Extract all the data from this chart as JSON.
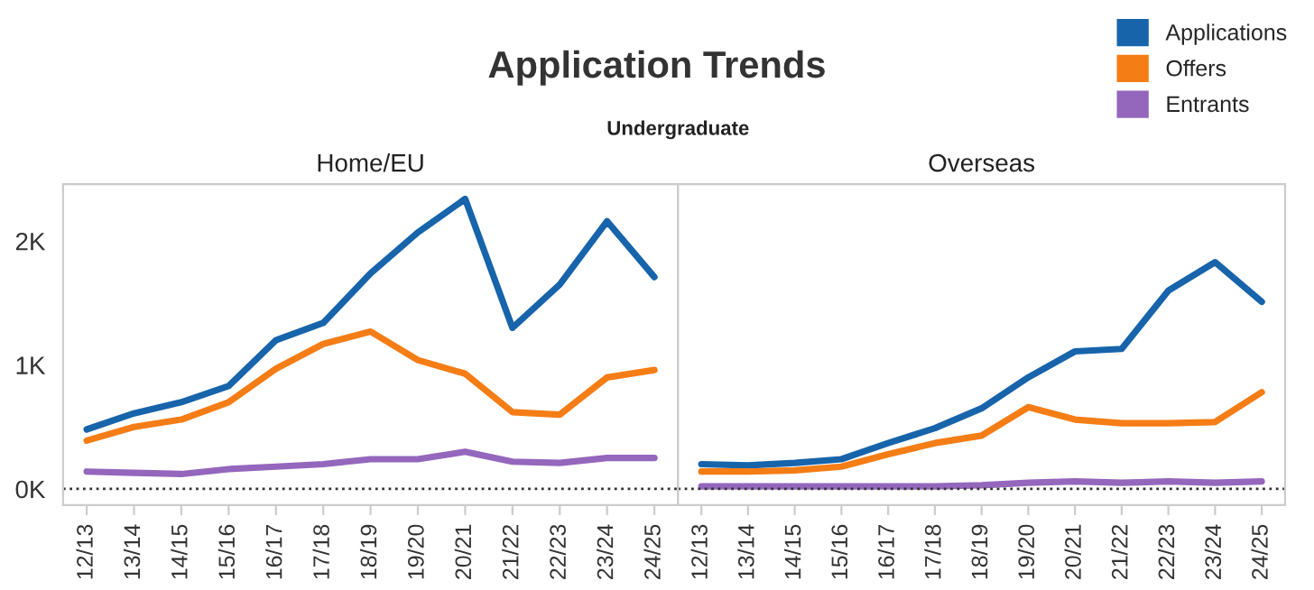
{
  "chart_data": [
    {
      "type": "line",
      "title": "Home/EU",
      "annotations": [
        "Application Trends",
        "Undergraduate"
      ],
      "categories": [
        "12/13",
        "13/14",
        "14/15",
        "15/16",
        "16/17",
        "17/18",
        "18/19",
        "19/20",
        "20/21",
        "21/22",
        "22/23",
        "23/24",
        "24/25"
      ],
      "series": [
        {
          "name": "Applications",
          "color": "#1764ab",
          "values": [
            480,
            610,
            700,
            830,
            1200,
            1340,
            1740,
            2070,
            2340,
            1300,
            1650,
            2160,
            1710
          ]
        },
        {
          "name": "Offers",
          "color": "#f57d15",
          "values": [
            390,
            500,
            560,
            700,
            970,
            1170,
            1270,
            1040,
            930,
            620,
            600,
            900,
            960
          ]
        },
        {
          "name": "Entrants",
          "color": "#9467bd",
          "values": [
            140,
            130,
            120,
            160,
            180,
            200,
            240,
            240,
            300,
            220,
            210,
            250,
            250
          ]
        }
      ],
      "ylim": [
        -130,
        2460
      ],
      "yticks": [
        {
          "value": 0,
          "label": "0K"
        },
        {
          "value": 1000,
          "label": "1K"
        },
        {
          "value": 2000,
          "label": "2K"
        }
      ],
      "ref_lines": [
        {
          "axis": "y",
          "value": 0,
          "line_style": "dotted",
          "color": "#333333"
        }
      ],
      "grid": false,
      "legend": "top right",
      "line_style": "solid",
      "marker": "none"
    },
    {
      "type": "line",
      "title": "Overseas",
      "categories": [
        "12/13",
        "13/14",
        "14/15",
        "15/16",
        "16/17",
        "17/18",
        "18/19",
        "19/20",
        "20/21",
        "21/22",
        "22/23",
        "23/24",
        "24/25"
      ],
      "series": [
        {
          "color": "#1764ab",
          "values": [
            200,
            190,
            210,
            240,
            370,
            490,
            650,
            900,
            1110,
            1130,
            1600,
            1830,
            1510
          ]
        },
        {
          "color": "#f57d15",
          "values": [
            140,
            140,
            150,
            180,
            280,
            370,
            430,
            660,
            560,
            530,
            530,
            540,
            780
          ]
        },
        {
          "color": "#9467bd",
          "values": [
            20,
            20,
            20,
            20,
            20,
            20,
            30,
            50,
            60,
            50,
            60,
            50,
            60
          ]
        }
      ],
      "ylim": [
        -130,
        2460
      ],
      "ref_lines": [
        {
          "axis": "y",
          "value": 0,
          "line_style": "dotted",
          "color": "#333333"
        }
      ],
      "grid": false,
      "tick_labels": "x",
      "line_style": "solid",
      "marker": "none"
    }
  ]
}
